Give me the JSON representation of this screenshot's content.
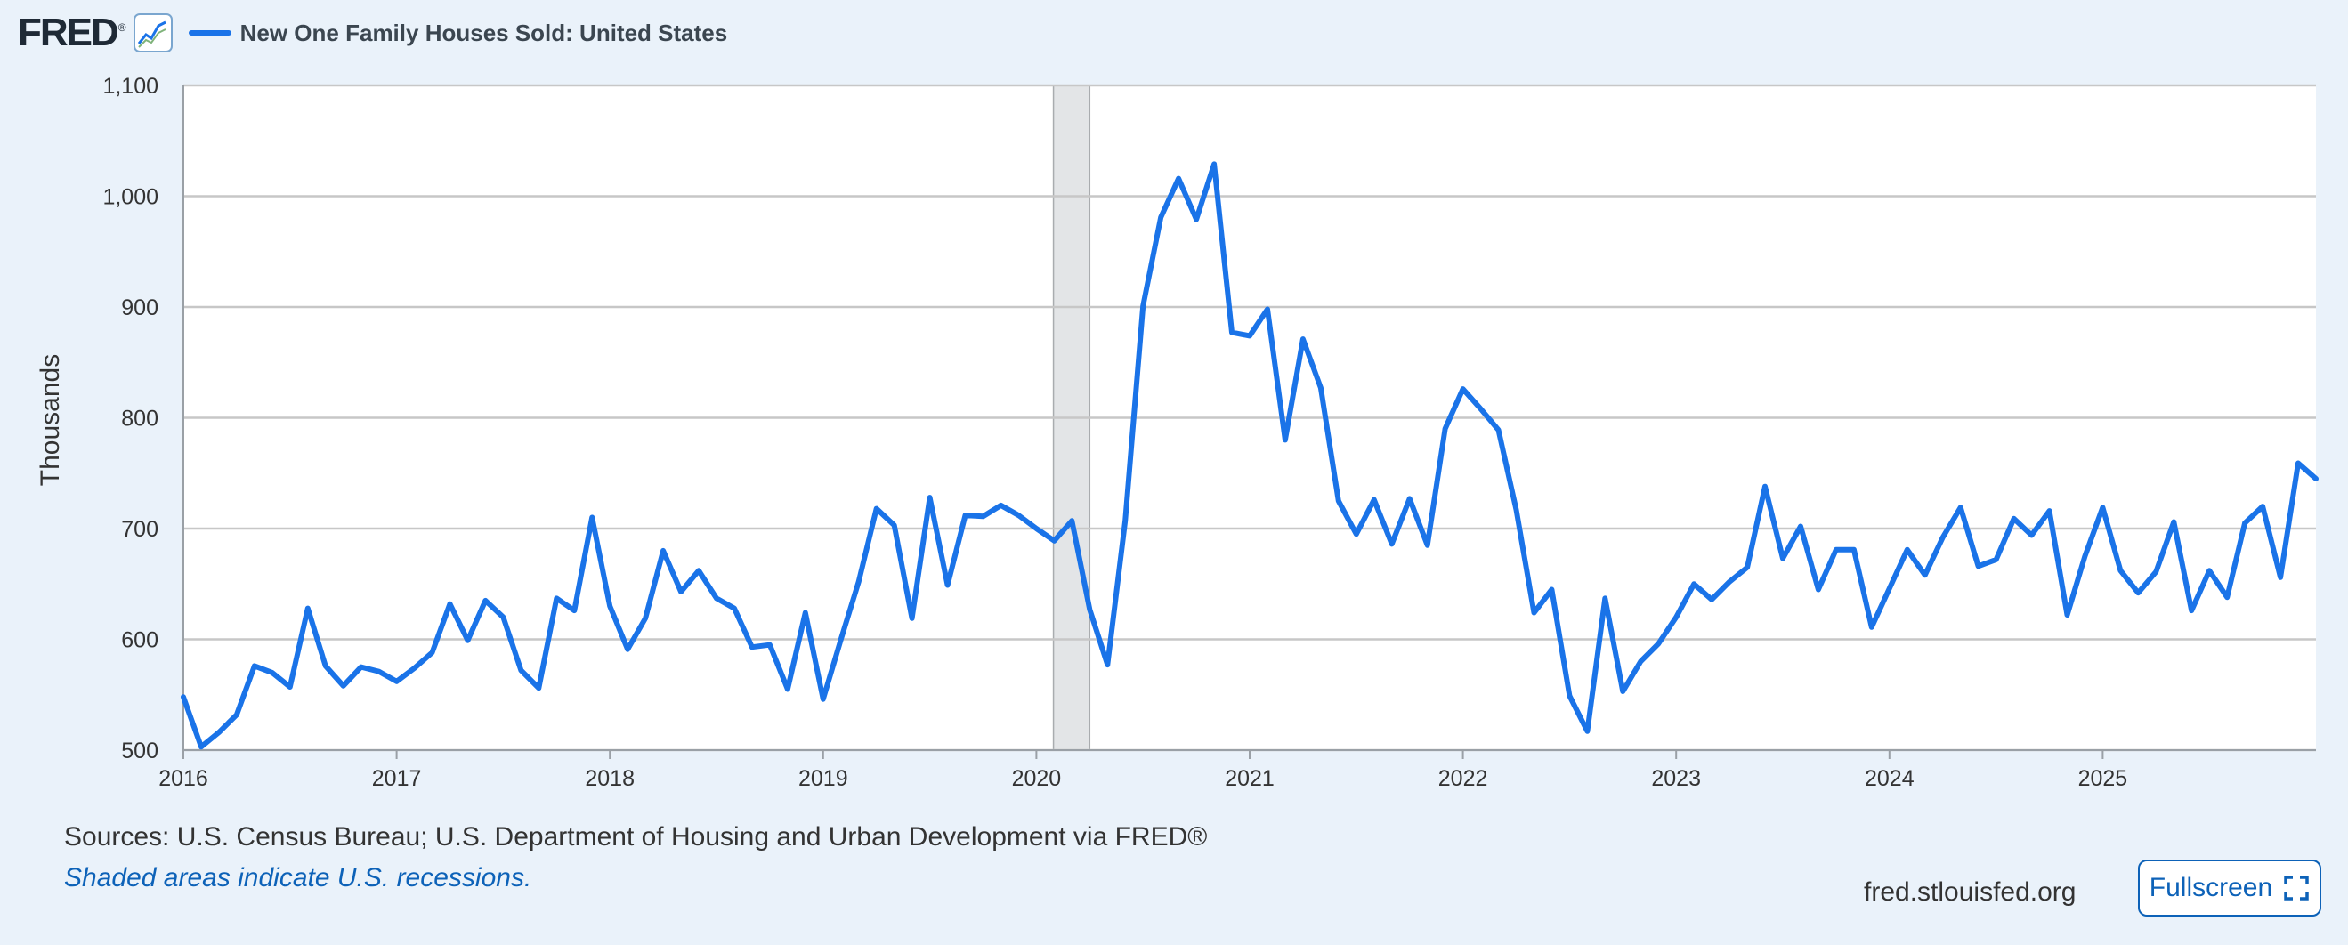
{
  "header": {
    "logo": "FRED",
    "logo_mark": "®",
    "series_title": "New One Family Houses Sold: United States",
    "series_color": "#1a73e8"
  },
  "footer": {
    "sources": "Sources: U.S. Census Bureau; U.S. Department of Housing and Urban Development via FRED®",
    "note": "Shaded areas indicate U.S. recessions.",
    "site": "fred.stlouisfed.org",
    "fullscreen_label": "Fullscreen"
  },
  "chart_data": {
    "type": "line",
    "title": "New One Family Houses Sold: United States",
    "xlabel": "",
    "ylabel": "Thousands",
    "ylim": [
      500,
      1100
    ],
    "yticks": [
      500,
      600,
      700,
      800,
      900,
      "1,000",
      "1,100"
    ],
    "xlim": [
      2016.0,
      2026.0
    ],
    "xticks": [
      "2016",
      "2017",
      "2018",
      "2019",
      "2020",
      "2021",
      "2022",
      "2023",
      "2024",
      "2025"
    ],
    "grid": true,
    "recessions": [
      {
        "start": 2020.08,
        "end": 2020.25,
        "label": "recession"
      }
    ],
    "series": [
      {
        "name": "New One Family Houses Sold: United States",
        "color": "#1a73e8",
        "start_year": 2016,
        "start_month": 1,
        "values": [
          548,
          503,
          516,
          532,
          576,
          570,
          557,
          628,
          576,
          558,
          575,
          571,
          562,
          574,
          588,
          632,
          599,
          635,
          620,
          572,
          556,
          637,
          626,
          710,
          630,
          591,
          619,
          680,
          643,
          662,
          637,
          628,
          593,
          595,
          555,
          624,
          546,
          600,
          652,
          718,
          703,
          619,
          728,
          649,
          712,
          711,
          721,
          712,
          700,
          689,
          707,
          627,
          577,
          707,
          901,
          981,
          1016,
          979,
          1029,
          877,
          874,
          898,
          780,
          871,
          827,
          725,
          695,
          726,
          686,
          727,
          685,
          790,
          826,
          808,
          789,
          717,
          624,
          645,
          549,
          517,
          637,
          553,
          580,
          596,
          620,
          650,
          636,
          652,
          665,
          738,
          673,
          702,
          645,
          681,
          681,
          611,
          646,
          681,
          658,
          692,
          719,
          666,
          672,
          709,
          694,
          716,
          622,
          675,
          719,
          662,
          642,
          661,
          706,
          626,
          662,
          638,
          705,
          720,
          656,
          759,
          745
        ]
      }
    ]
  }
}
